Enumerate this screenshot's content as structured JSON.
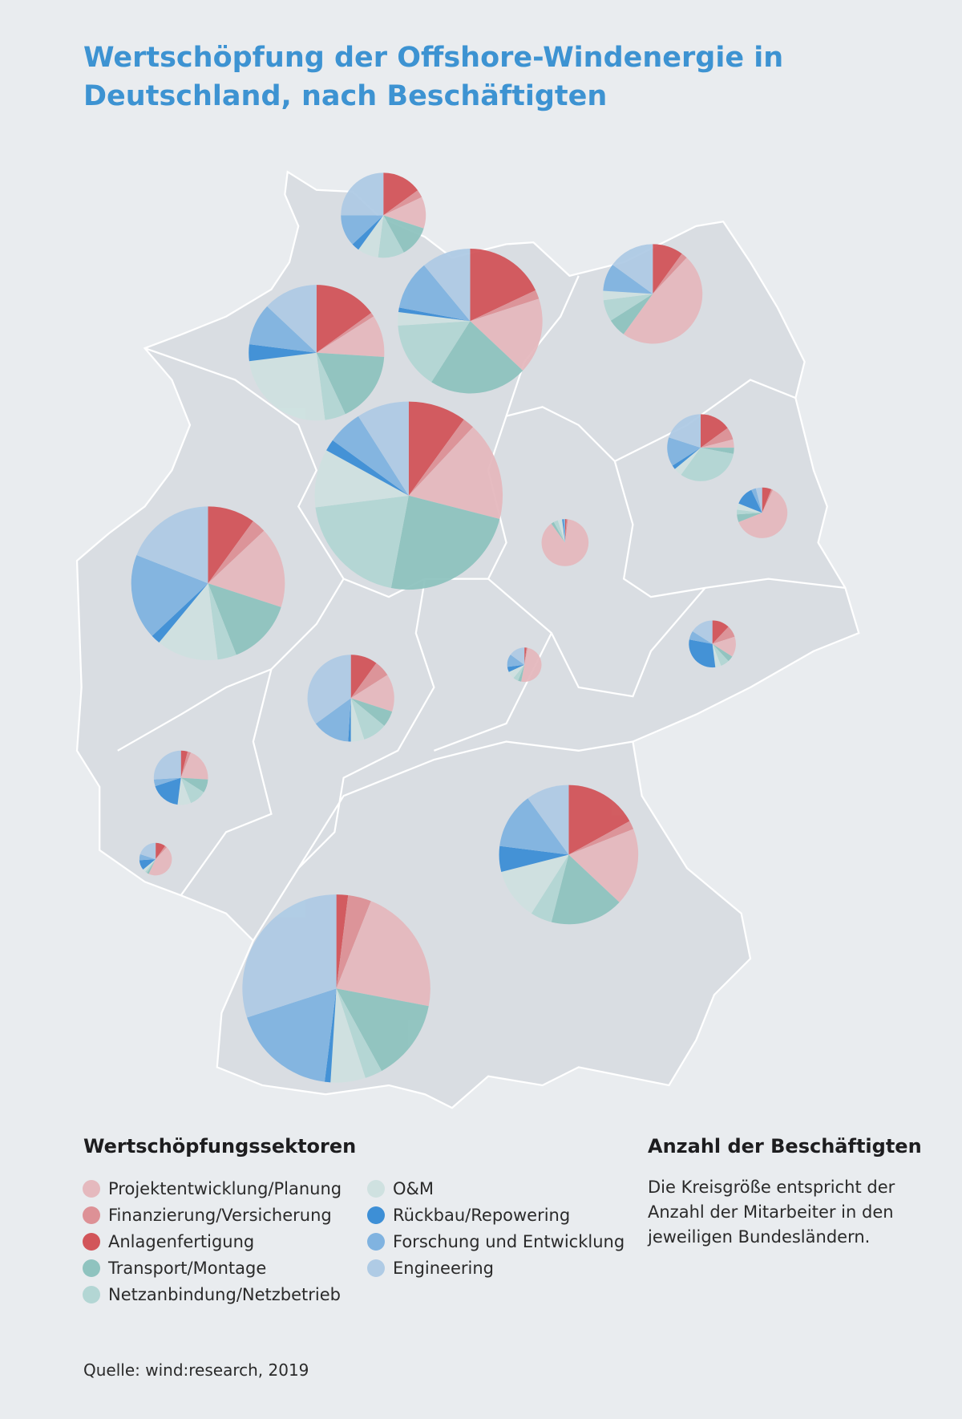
{
  "chart_data": {
    "type": "pie",
    "title": "Wertschöpfung der Offshore-Windenergie in Deutschland, nach Beschäftigten",
    "legend_title": "Wertschöpfungssektoren",
    "legend_placement": "bottom-left",
    "categories": [
      {
        "label": "Anlagenfertigung",
        "color": "#d2555a"
      },
      {
        "label": "Finanzierung/Versicherung",
        "color": "#dd9196"
      },
      {
        "label": "Projektentwicklung/Planung",
        "color": "#e5b9be"
      },
      {
        "label": "Transport/Montage",
        "color": "#8fc3bf"
      },
      {
        "label": "Netzanbindung/Netzbetrieb",
        "color": "#b3d6d4"
      },
      {
        "label": "O&M",
        "color": "#cfe1e0"
      },
      {
        "label": "Rückbau/Repowering",
        "color": "#3d8fd6"
      },
      {
        "label": "Forschung und Entwicklung",
        "color": "#80b3e0"
      },
      {
        "label": "Engineering",
        "color": "#afcbe5"
      }
    ],
    "legend_order": [
      2,
      1,
      0,
      3,
      4,
      5,
      6,
      7,
      8
    ],
    "pies_percent": [
      [
        15,
        3,
        12,
        12,
        10,
        8,
        3,
        12,
        25
      ],
      [
        18,
        2,
        17,
        22,
        15,
        3,
        1,
        11,
        11
      ],
      [
        10,
        2,
        48,
        6,
        7,
        3,
        0,
        9,
        15
      ],
      [
        15,
        1,
        10,
        17,
        5,
        25,
        4,
        10,
        13
      ],
      [
        10,
        2,
        17,
        24,
        20,
        10,
        2,
        6,
        9
      ],
      [
        10,
        3,
        17,
        14,
        4,
        13,
        2,
        18,
        19
      ],
      [
        15,
        6,
        4,
        3,
        32,
        4,
        2,
        14,
        20
      ],
      [
        6,
        1,
        62,
        5,
        3,
        4,
        12,
        3,
        4
      ],
      [
        1,
        1,
        88,
        2,
        3,
        3,
        1,
        1,
        0
      ],
      [
        2,
        1,
        50,
        3,
        5,
        7,
        5,
        12,
        15
      ],
      [
        12,
        8,
        14,
        4,
        6,
        4,
        30,
        6,
        16
      ],
      [
        10,
        6,
        14,
        6,
        9,
        5,
        1,
        14,
        35
      ],
      [
        4,
        2,
        20,
        8,
        10,
        8,
        18,
        4,
        26
      ],
      [
        10,
        2,
        45,
        2,
        2,
        3,
        10,
        6,
        20
      ],
      [
        17,
        2,
        18,
        17,
        5,
        12,
        6,
        13,
        10
      ],
      [
        2,
        4,
        22,
        14,
        3,
        6,
        1,
        18,
        30
      ]
    ]
  },
  "size_legend": {
    "title": "Anzahl der Beschäftigten",
    "description": "Die Kreisgröße entspricht der Anzahl der Mitarbeiter in den jeweiligen Bundesländern."
  },
  "source": "Quelle: wind:research, 2019",
  "colors": {
    "title": "#3d93d2",
    "background": "#e9ecef",
    "map_fill": "#d9dde2",
    "map_border": "#ffffff"
  }
}
